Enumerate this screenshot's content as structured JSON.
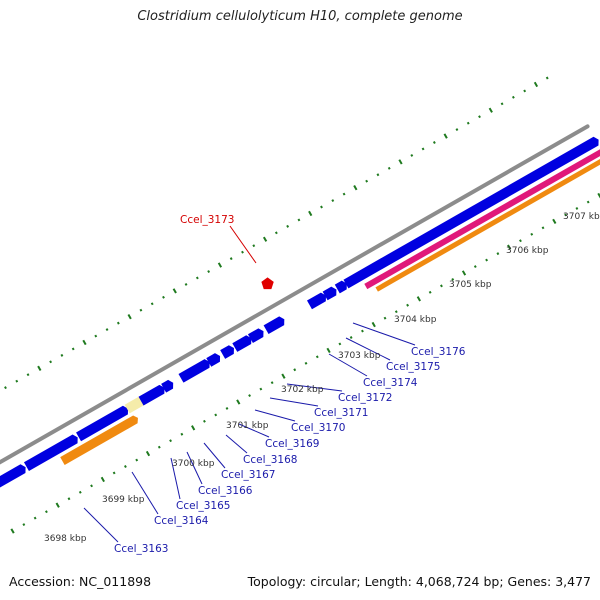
{
  "title": "Clostridium cellulolyticum H10, complete genome",
  "footer": {
    "accession": "Accession: NC_011898",
    "summary": "Topology: circular; Length: 4,068,724 bp; Genes: 3,477"
  },
  "colors": {
    "backbone": "#8c8c8c",
    "cds": "#0000e0",
    "rrna": "#e0187a",
    "orange": "#f08a10",
    "pale": "#f5ecaa",
    "highlight": "#e00000",
    "scale_green": "#1f7a1f",
    "gene_label": "#1a1aaa",
    "label_line": "#1a1aaa",
    "highlight_label": "#d40000"
  },
  "chart_data": {
    "type": "genome-map",
    "scale_labels": [
      {
        "kbp": 3698,
        "text": "3698 kbp"
      },
      {
        "kbp": 3699,
        "text": "3699 kbp"
      },
      {
        "kbp": 3700,
        "text": "3700 kbp"
      },
      {
        "kbp": 3701,
        "text": "3701 kbp"
      },
      {
        "kbp": 3702,
        "text": "3702 kbp"
      },
      {
        "kbp": 3703,
        "text": "3703 kbp"
      },
      {
        "kbp": 3704,
        "text": "3704 kbp"
      },
      {
        "kbp": 3705,
        "text": "3705 kbp"
      },
      {
        "kbp": 3706,
        "text": "3706 kbp"
      },
      {
        "kbp": 3707,
        "text": "3707 kbp"
      }
    ],
    "gene_labels": [
      {
        "name": "Ccel_3163",
        "highlight": false
      },
      {
        "name": "Ccel_3164",
        "highlight": false
      },
      {
        "name": "Ccel_3165",
        "highlight": false
      },
      {
        "name": "Ccel_3166",
        "highlight": false
      },
      {
        "name": "Ccel_3167",
        "highlight": false
      },
      {
        "name": "Ccel_3168",
        "highlight": false
      },
      {
        "name": "Ccel_3169",
        "highlight": false
      },
      {
        "name": "Ccel_3170",
        "highlight": false
      },
      {
        "name": "Ccel_3171",
        "highlight": false
      },
      {
        "name": "Ccel_3172",
        "highlight": false
      },
      {
        "name": "Ccel_3174",
        "highlight": false
      },
      {
        "name": "Ccel_3175",
        "highlight": false
      },
      {
        "name": "Ccel_3176",
        "highlight": false
      },
      {
        "name": "Ccel_3173",
        "highlight": true
      }
    ]
  }
}
